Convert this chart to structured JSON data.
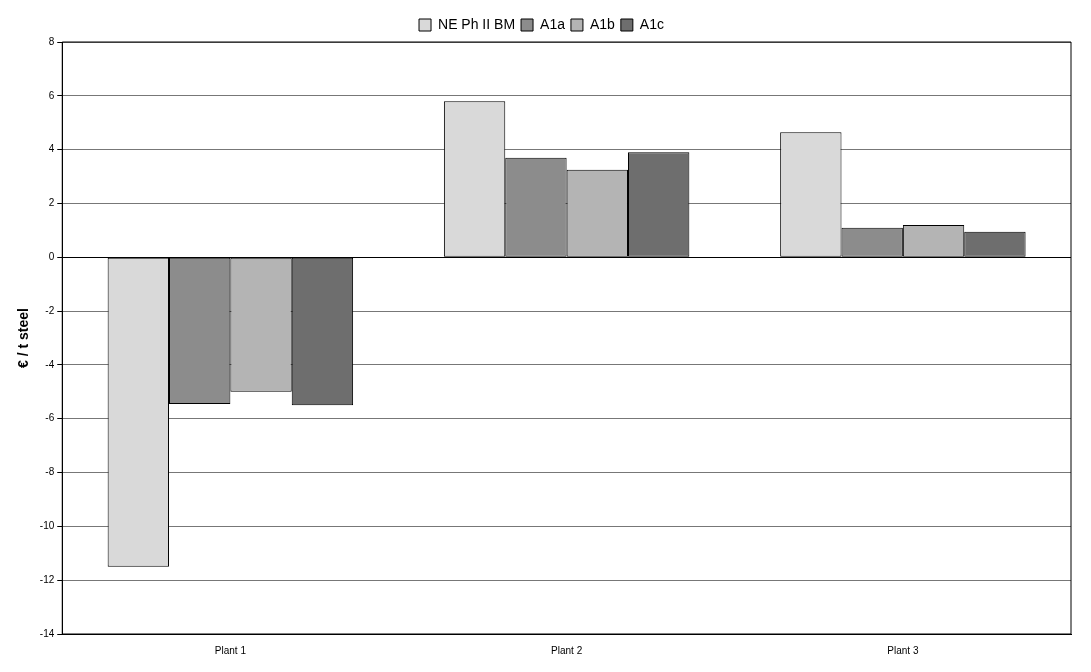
{
  "chart_data": {
    "type": "bar",
    "ylabel": "€ / t steel",
    "categories": [
      "Plant 1",
      "Plant 2",
      "Plant 3"
    ],
    "series": [
      {
        "name": "NE Ph II BM",
        "color": "#d9d9d9",
        "values": [
          -11.5,
          5.8,
          4.65
        ]
      },
      {
        "name": "A1a",
        "color": "#8c8c8c",
        "values": [
          -5.45,
          3.7,
          1.1
        ]
      },
      {
        "name": "A1b",
        "color": "#b4b4b4",
        "values": [
          -5.0,
          3.25,
          1.2
        ]
      },
      {
        "name": "A1c",
        "color": "#6e6e6e",
        "values": [
          -5.5,
          3.9,
          0.95
        ]
      }
    ],
    "ylim": [
      -14,
      8
    ],
    "yticks": [
      -14,
      -12,
      -10,
      -8,
      -6,
      -4,
      -2,
      0,
      2,
      4,
      6,
      8
    ],
    "grid": "y",
    "legend": "top"
  }
}
